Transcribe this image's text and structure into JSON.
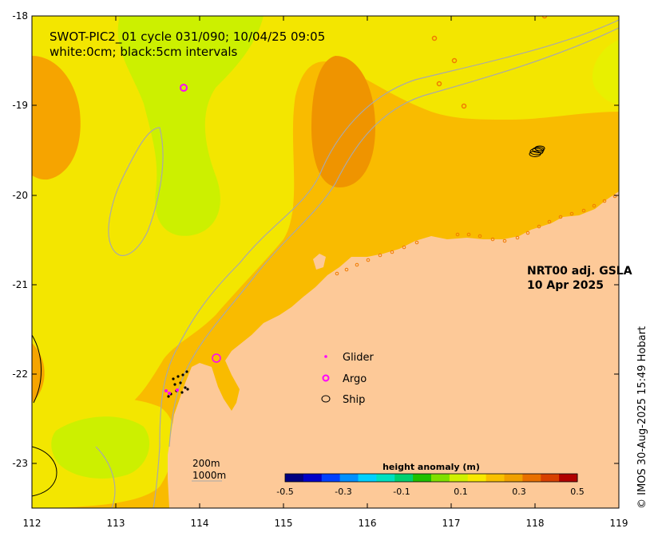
{
  "title": {
    "line1": "SWOT-PIC2_01 cycle 031/090; 10/04/25 09:05",
    "line2": "white:0cm; black:5cm intervals"
  },
  "product": {
    "name": "NRT00 adj. GSLA",
    "date": "10 Apr 2025"
  },
  "legend": {
    "items": [
      {
        "label": "Glider",
        "symbol": "dot",
        "color": "#ff00ff"
      },
      {
        "label": "Argo",
        "symbol": "ring",
        "color": "#ff00ff"
      },
      {
        "label": "Ship",
        "symbol": "ellipse",
        "color": "#000000"
      }
    ]
  },
  "scalebar": {
    "depth1": "200m",
    "depth2": "1000m"
  },
  "colorbar": {
    "title": "height anomaly (m)",
    "min": -0.5,
    "max": 0.5,
    "ticks": [
      "-0.5",
      "-0.3",
      "-0.1",
      "0.1",
      "0.3",
      "0.5"
    ]
  },
  "axes": {
    "lon": {
      "min": 112,
      "max": 119,
      "ticks": [
        "112",
        "113",
        "114",
        "115",
        "116",
        "117",
        "118",
        "119"
      ]
    },
    "lat": {
      "min": -23.5,
      "max": -18,
      "ticks": [
        "-18",
        "-19",
        "-20",
        "-21",
        "-22",
        "-23"
      ]
    }
  },
  "credit": "© IMOS 30-Aug-2025 15:49 Hobart",
  "colors": {
    "land": "#fdc998",
    "ocean_high": "#f6a300",
    "ocean_mid": "#fbd400",
    "ocean_low": "#c8f000"
  }
}
